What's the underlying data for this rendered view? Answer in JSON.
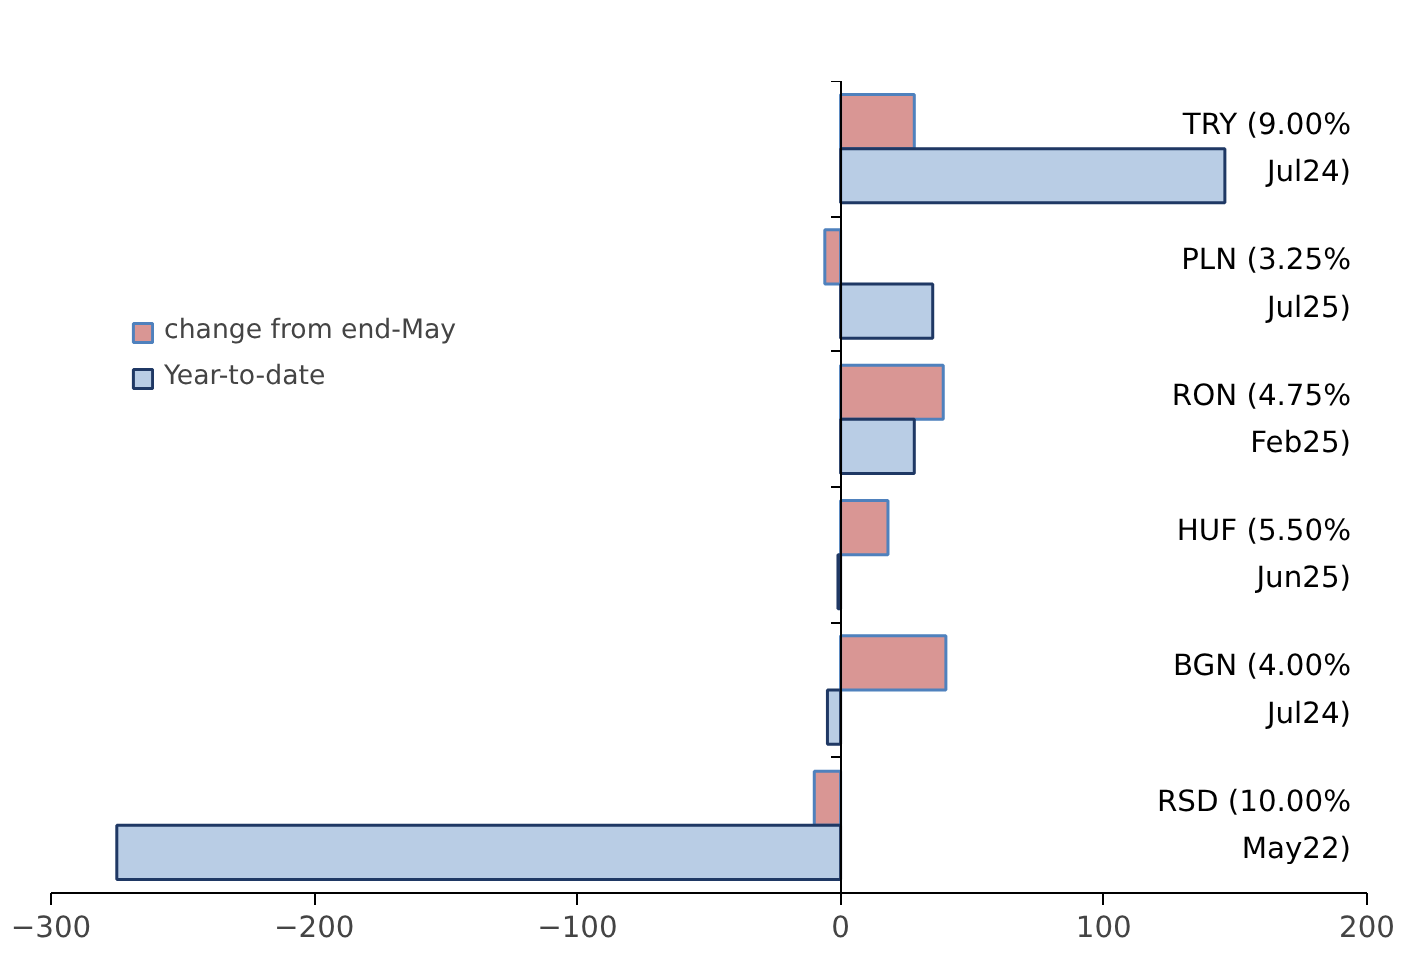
{
  "chart_data": {
    "type": "bar",
    "orientation": "horizontal",
    "categories": [
      "TRY (9.00% Jul24)",
      "PLN (3.25% Jul25)",
      "RON (4.75% Feb25)",
      "HUF (5.50% Jun25)",
      "BGN (4.00% Jul24)",
      "RSD (10.00% May22)"
    ],
    "series": [
      {
        "name": "change from end-May",
        "color": "#d99694",
        "values": [
          28,
          -6,
          39,
          18,
          40,
          -10
        ]
      },
      {
        "name": "Year-to-date",
        "color": "#b9cde5",
        "values": [
          146,
          35,
          28,
          -1,
          -5,
          -275
        ]
      }
    ],
    "xlim": [
      -300,
      200
    ],
    "xticks": [
      -300,
      -200,
      -100,
      0,
      100,
      200
    ],
    "legend": "top left"
  }
}
